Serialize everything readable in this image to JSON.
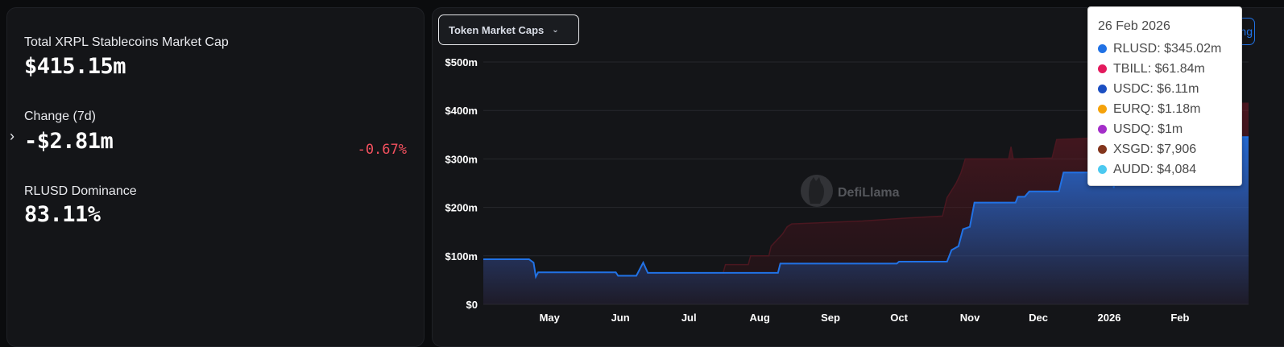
{
  "stats": {
    "market_cap_label": "Total XRPL Stablecoins Market Cap",
    "market_cap_value": "$415.15m",
    "change_label": "Change (7d)",
    "change_value": "-$2.81m",
    "change_pct": "-0.67%",
    "dominance_label": "RLUSD Dominance",
    "dominance_value": "83.11%"
  },
  "toolbar": {
    "dropdown_label": "Token Market Caps",
    "partial_button_label": "ng"
  },
  "watermark": "DefiLlama",
  "tooltip": {
    "date": "26 Feb 2026",
    "items": [
      {
        "label": "RLUSD: $345.02m",
        "color": "#2172e5"
      },
      {
        "label": "TBILL: $61.84m",
        "color": "#e31a5d"
      },
      {
        "label": "USDC: $6.11m",
        "color": "#1c4fc2"
      },
      {
        "label": "EURQ: $1.18m",
        "color": "#f5a20a"
      },
      {
        "label": "USDQ: $1m",
        "color": "#a42ec9"
      },
      {
        "label": "XSGD: $7,906",
        "color": "#83351d"
      },
      {
        "label": "AUDD: $4,084",
        "color": "#4cc9f0"
      }
    ]
  },
  "chart_data": {
    "type": "area",
    "stacked": true,
    "y_ticks": [
      "$0",
      "$100m",
      "$200m",
      "$300m",
      "$400m",
      "$500m"
    ],
    "ylim": [
      0,
      500
    ],
    "x_ticks": [
      "May",
      "Jun",
      "Jul",
      "Aug",
      "Sep",
      "Oct",
      "Nov",
      "Dec",
      "2026",
      "Feb"
    ],
    "x_tick_dates": [
      "2025-05-01",
      "2025-06-01",
      "2025-07-01",
      "2025-08-01",
      "2025-09-01",
      "2025-10-01",
      "2025-11-01",
      "2025-12-01",
      "2026-01-01",
      "2026-02-01"
    ],
    "xlim": [
      "2025-04-02",
      "2026-03-03"
    ],
    "grid": true,
    "series": [
      {
        "name": "RLUSD",
        "color": "#2172e5",
        "points": [
          [
            "2025-04-02",
            93
          ],
          [
            "2025-04-22",
            93
          ],
          [
            "2025-04-24",
            86
          ],
          [
            "2025-04-25",
            57
          ],
          [
            "2025-04-26",
            66
          ],
          [
            "2025-05-30",
            66
          ],
          [
            "2025-05-31",
            59
          ],
          [
            "2025-06-08",
            59
          ],
          [
            "2025-06-11",
            86
          ],
          [
            "2025-06-13",
            65
          ],
          [
            "2025-08-09",
            65
          ],
          [
            "2025-08-10",
            84
          ],
          [
            "2025-09-30",
            84
          ],
          [
            "2025-10-01",
            88
          ],
          [
            "2025-10-22",
            88
          ],
          [
            "2025-10-24",
            112
          ],
          [
            "2025-10-27",
            120
          ],
          [
            "2025-10-29",
            155
          ],
          [
            "2025-11-01",
            160
          ],
          [
            "2025-11-03",
            210
          ],
          [
            "2025-11-21",
            210
          ],
          [
            "2025-11-22",
            222
          ],
          [
            "2025-11-25",
            222
          ],
          [
            "2025-11-27",
            233
          ],
          [
            "2025-12-10",
            233
          ],
          [
            "2025-12-12",
            272
          ],
          [
            "2025-12-24",
            272
          ],
          [
            "2025-12-26",
            300
          ],
          [
            "2026-01-02",
            300
          ],
          [
            "2026-01-03",
            240
          ],
          [
            "2026-01-04",
            300
          ],
          [
            "2026-01-28",
            300
          ],
          [
            "2026-01-30",
            320
          ],
          [
            "2026-02-22",
            320
          ],
          [
            "2026-02-24",
            345
          ],
          [
            "2026-03-03",
            345
          ]
        ]
      },
      {
        "name": "Total",
        "color": "#3a1016",
        "points": [
          [
            "2025-04-02",
            93
          ],
          [
            "2025-04-22",
            93
          ],
          [
            "2025-04-24",
            86
          ],
          [
            "2025-04-25",
            57
          ],
          [
            "2025-04-26",
            66
          ],
          [
            "2025-05-30",
            66
          ],
          [
            "2025-05-31",
            59
          ],
          [
            "2025-06-08",
            59
          ],
          [
            "2025-06-11",
            86
          ],
          [
            "2025-06-13",
            65
          ],
          [
            "2025-07-16",
            65
          ],
          [
            "2025-07-17",
            82
          ],
          [
            "2025-07-27",
            82
          ],
          [
            "2025-07-28",
            100
          ],
          [
            "2025-08-05",
            100
          ],
          [
            "2025-08-06",
            120
          ],
          [
            "2025-08-11",
            145
          ],
          [
            "2025-08-13",
            160
          ],
          [
            "2025-08-15",
            166
          ],
          [
            "2025-09-15",
            172
          ],
          [
            "2025-10-05",
            178
          ],
          [
            "2025-10-20",
            182
          ],
          [
            "2025-10-22",
            220
          ],
          [
            "2025-10-26",
            250
          ],
          [
            "2025-10-28",
            270
          ],
          [
            "2025-10-30",
            300
          ],
          [
            "2025-11-18",
            300
          ],
          [
            "2025-11-19",
            325
          ],
          [
            "2025-11-20",
            300
          ],
          [
            "2025-12-07",
            302
          ],
          [
            "2025-12-09",
            340
          ],
          [
            "2025-12-20",
            342
          ],
          [
            "2026-01-02",
            346
          ],
          [
            "2026-01-03",
            290
          ],
          [
            "2026-01-05",
            358
          ],
          [
            "2026-01-30",
            382
          ],
          [
            "2026-02-20",
            405
          ],
          [
            "2026-02-24",
            415
          ],
          [
            "2026-03-03",
            415
          ]
        ]
      }
    ]
  }
}
